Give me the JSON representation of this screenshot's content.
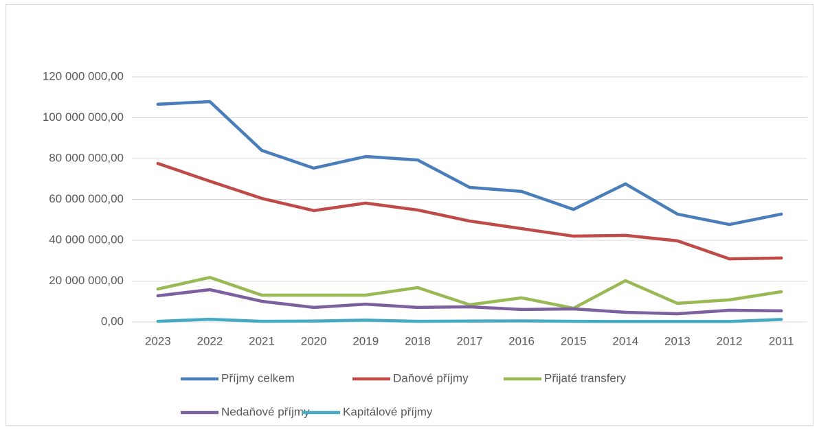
{
  "chart_data": {
    "type": "line",
    "categories": [
      "2023",
      "2022",
      "2021",
      "2020",
      "2019",
      "2018",
      "2017",
      "2016",
      "2015",
      "2014",
      "2013",
      "2012",
      "2011"
    ],
    "series": [
      {
        "name": "Příjmy celkem",
        "color": "#4a7ebb",
        "values": [
          106600000,
          107900000,
          84000000,
          75300000,
          81000000,
          79300000,
          65900000,
          63900000,
          55100000,
          67600000,
          52800000,
          47700000,
          52800000
        ]
      },
      {
        "name": "Daňové příjmy",
        "color": "#be4b48",
        "values": [
          77600000,
          68900000,
          60500000,
          54500000,
          58200000,
          54800000,
          49400000,
          45700000,
          42000000,
          42400000,
          39700000,
          30900000,
          31300000
        ]
      },
      {
        "name": "Přijaté transfery",
        "color": "#98b954",
        "values": [
          16100000,
          21800000,
          13100000,
          13100000,
          13100000,
          16800000,
          8400000,
          11800000,
          6700000,
          20200000,
          9100000,
          10800000,
          14800000
        ]
      },
      {
        "name": "Nedaňové příjmy",
        "color": "#7d60a0",
        "values": [
          12800000,
          15800000,
          10100000,
          7100000,
          8700000,
          7100000,
          7400000,
          6100000,
          6400000,
          4700000,
          4000000,
          5700000,
          5400000
        ]
      },
      {
        "name": "Kapitálové příjmy",
        "color": "#46aac5",
        "values": [
          300000,
          1300000,
          300000,
          400000,
          900000,
          300000,
          400000,
          500000,
          300000,
          200000,
          200000,
          200000,
          1200000
        ]
      }
    ],
    "ylim": [
      0,
      120000000
    ],
    "yticks": [
      {
        "value": 0,
        "label": "0,00"
      },
      {
        "value": 20000000,
        "label": "20 000 000,00"
      },
      {
        "value": 40000000,
        "label": "40 000 000,00"
      },
      {
        "value": 60000000,
        "label": "60 000 000,00"
      },
      {
        "value": 80000000,
        "label": "80 000 000,00"
      },
      {
        "value": 100000000,
        "label": "100 000 000,00"
      },
      {
        "value": 120000000,
        "label": "120 000 000,00"
      }
    ],
    "grid": true,
    "legend": "bottom"
  }
}
